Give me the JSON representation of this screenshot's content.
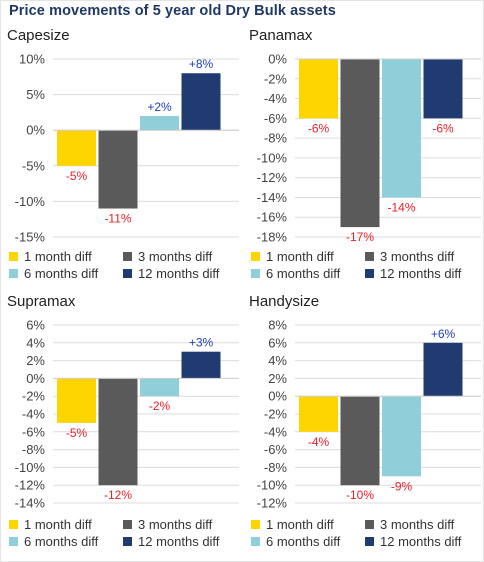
{
  "title": "Price movements of 5 year old Dry Bulk assets",
  "legend": {
    "labels": [
      "1 month diff",
      "3 months diff",
      "6 months diff",
      "12 months diff"
    ],
    "colors": [
      "#FFD500",
      "#5A5A5A",
      "#8FCFD9",
      "#203B72"
    ]
  },
  "label_colors": {
    "positive": "#1F3FB8",
    "negative": "#E8202A"
  },
  "chart_data": [
    {
      "type": "bar",
      "title": "Capesize",
      "categories": [
        "1 month diff",
        "3 months diff",
        "6 months diff",
        "12 months diff"
      ],
      "values": [
        -5,
        -11,
        2,
        8
      ],
      "value_labels": [
        "-5%",
        "-11%",
        "+2%",
        "+8%"
      ],
      "ylim": [
        -15,
        10
      ],
      "ytick_step": 5,
      "yticks": [
        "10%",
        "5%",
        "0%",
        "-5%",
        "-10%",
        "-15%"
      ],
      "grid": true
    },
    {
      "type": "bar",
      "title": "Panamax",
      "categories": [
        "1 month diff",
        "3 months diff",
        "6 months diff",
        "12 months diff"
      ],
      "values": [
        -6,
        -17,
        -14,
        -6
      ],
      "value_labels": [
        "-6%",
        "-17%",
        "-14%",
        "-6%"
      ],
      "ylim": [
        -18,
        0
      ],
      "ytick_step": 2,
      "yticks": [
        "0%",
        "-2%",
        "-4%",
        "-6%",
        "-8%",
        "-10%",
        "-12%",
        "-14%",
        "-16%",
        "-18%"
      ],
      "grid": true
    },
    {
      "type": "bar",
      "title": "Supramax",
      "categories": [
        "1 month diff",
        "3 months diff",
        "6 months diff",
        "12 months diff"
      ],
      "values": [
        -5,
        -12,
        -2,
        3
      ],
      "value_labels": [
        "-5%",
        "-12%",
        "-2%",
        "+3%"
      ],
      "ylim": [
        -14,
        6
      ],
      "ytick_step": 2,
      "yticks": [
        "6%",
        "4%",
        "2%",
        "0%",
        "-2%",
        "-4%",
        "-6%",
        "-8%",
        "-10%",
        "-12%",
        "-14%"
      ],
      "grid": true
    },
    {
      "type": "bar",
      "title": "Handysize",
      "categories": [
        "1 month diff",
        "3 months diff",
        "6 months diff",
        "12 months diff"
      ],
      "values": [
        -4,
        -10,
        -9,
        6
      ],
      "value_labels": [
        "-4%",
        "-10%",
        "-9%",
        "+6%"
      ],
      "ylim": [
        -12,
        8
      ],
      "ytick_step": 2,
      "yticks": [
        "8%",
        "6%",
        "4%",
        "2%",
        "0%",
        "-2%",
        "-4%",
        "-6%",
        "-8%",
        "-10%",
        "-12%"
      ],
      "grid": true
    }
  ]
}
